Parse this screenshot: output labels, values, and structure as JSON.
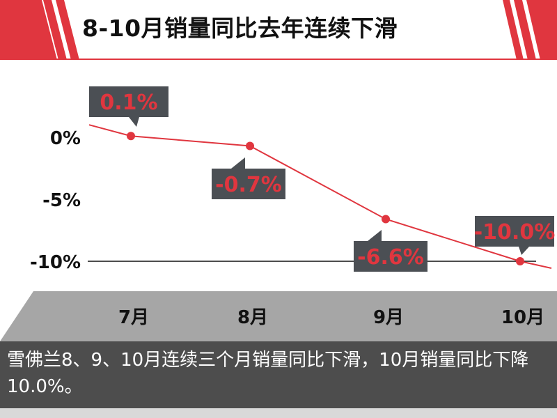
{
  "title": "8-10月销量同比去年连续下滑",
  "colors": {
    "accent": "#e0363f",
    "callout": "#4b4f54",
    "axis_band": "#a6a6a6",
    "caption_band": "#4d4d4d"
  },
  "chart_data": {
    "type": "line",
    "categories": [
      "7月",
      "8月",
      "9月",
      "10月"
    ],
    "series": [
      {
        "values": [
          0.1,
          -0.7,
          -6.6,
          -10.0
        ],
        "labels": [
          "0.1%",
          "-0.7%",
          "-6.6%",
          "-10.0%"
        ]
      }
    ],
    "y_ticks": [
      "0%",
      "-5%",
      "-10%"
    ],
    "y_tick_values": [
      0,
      -5,
      -10
    ],
    "ylim": [
      -10.5,
      0.5
    ],
    "title": "8-10月销量同比去年连续下滑"
  },
  "caption": "雪佛兰8、9、10月连续三个月销量同比下滑，10月销量同比下降10.0%。"
}
